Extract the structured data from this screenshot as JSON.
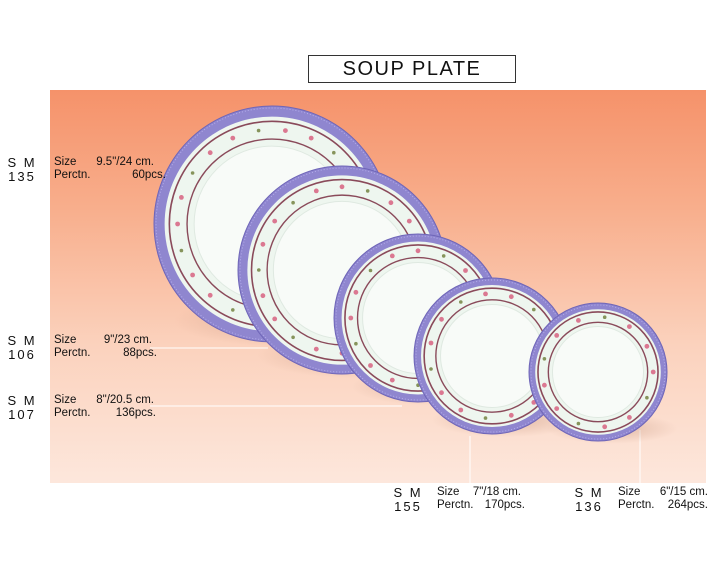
{
  "title": "SOUP PLATE",
  "labels": {
    "size": "Size",
    "per_ctn": "Perctn."
  },
  "products": [
    {
      "code_line1": "S M",
      "code_line2": "135",
      "size": "9.5\"/24 cm.",
      "per_ctn": "60pcs."
    },
    {
      "code_line1": "S M",
      "code_line2": "106",
      "size": "9\"/23 cm.",
      "per_ctn": "88pcs."
    },
    {
      "code_line1": "S M",
      "code_line2": "107",
      "size": "8\"/20.5 cm.",
      "per_ctn": "136pcs."
    },
    {
      "code_line1": "S M",
      "code_line2": "155",
      "size": "7\"/18 cm.",
      "per_ctn": "170pcs."
    },
    {
      "code_line1": "S M",
      "code_line2": "136",
      "size": "6\"/15 cm.",
      "per_ctn": "264pcs."
    }
  ],
  "colors": {
    "rim": "#8f86cf",
    "rim_dark": "#6e65b8",
    "plate_body": "#eef6ef",
    "plate_center": "#f8fbf8",
    "band": "#8a4a5a",
    "flower": "#d86a86",
    "leaf": "#7a8a4a"
  }
}
